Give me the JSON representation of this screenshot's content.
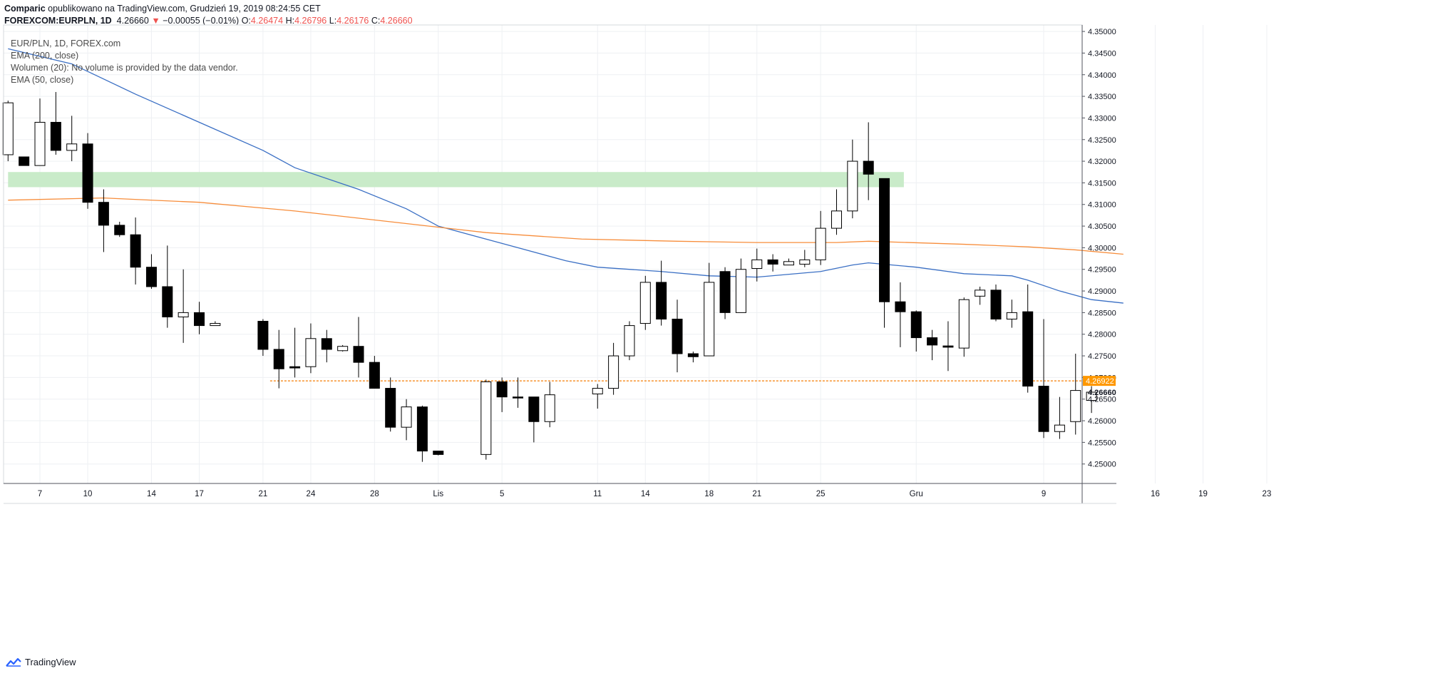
{
  "header": {
    "author": "Comparic",
    "published_text": "opublikowano na TradingView.com, Grudzień 19, 2019 08:24:55 CET",
    "symbol": "FOREXCOM:EURPLN, 1D",
    "last": "4.26660",
    "change_arrow": "▼",
    "change": "−0.00055 (−0.01%)",
    "o_label": "O:",
    "o": "4.26474",
    "h_label": "H:",
    "h": "4.26796",
    "l_label": "L:",
    "l": "4.26176",
    "c_label": "C:",
    "c": "4.26660"
  },
  "legend": {
    "symbol": "EUR/PLN, 1D, FOREX.com",
    "ema200": "EMA (200, close)",
    "volume": "Wolumen (20): No volume is provided by the data vendor.",
    "ema50": "EMA (50, close)"
  },
  "footer": {
    "brand": "TradingView"
  },
  "colors": {
    "ema50": "#3a6fc4",
    "ema200": "#f78d3b",
    "zone": "#c9ebc9",
    "level_line": "#f57c00",
    "level_badge": "#ff9800",
    "candle_up_fill": "#ffffff",
    "candle_down_fill": "#000000",
    "grid": "#eef0f3"
  },
  "chart_data": {
    "type": "candlestick",
    "title": "EUR/PLN, 1D, FOREX.com",
    "ylim": [
      4.2455,
      4.3515
    ],
    "y_ticks": [
      "4.35000",
      "4.34500",
      "4.34000",
      "4.33500",
      "4.33000",
      "4.32500",
      "4.32000",
      "4.31500",
      "4.31000",
      "4.30500",
      "4.30000",
      "4.29500",
      "4.29000",
      "4.28500",
      "4.28000",
      "4.27500",
      "4.27000",
      "4.26500",
      "4.26000",
      "4.25500",
      "4.25000"
    ],
    "x_ticks": [
      {
        "label": "7",
        "day": 0
      },
      {
        "label": "10",
        "day": 3
      },
      {
        "label": "14",
        "day": 7
      },
      {
        "label": "17",
        "day": 10
      },
      {
        "label": "21",
        "day": 14
      },
      {
        "label": "24",
        "day": 17
      },
      {
        "label": "28",
        "day": 21
      },
      {
        "label": "Lis",
        "day": 25
      },
      {
        "label": "5",
        "day": 29
      },
      {
        "label": "11",
        "day": 35
      },
      {
        "label": "14",
        "day": 38
      },
      {
        "label": "18",
        "day": 42
      },
      {
        "label": "21",
        "day": 45
      },
      {
        "label": "25",
        "day": 49
      },
      {
        "label": "Gru",
        "day": 55
      },
      {
        "label": "9",
        "day": 63
      },
      {
        "label": "16",
        "day": 70
      },
      {
        "label": "19",
        "day": 73
      },
      {
        "label": "23",
        "day": 77
      }
    ],
    "candles": [
      {
        "day": -2,
        "o": 4.3215,
        "h": 4.334,
        "l": 4.32,
        "c": 4.3335
      },
      {
        "day": -1,
        "o": 4.321,
        "h": 4.321,
        "l": 4.319,
        "c": 4.319
      },
      {
        "day": 0,
        "o": 4.319,
        "h": 4.3345,
        "l": 4.319,
        "c": 4.329
      },
      {
        "day": 1,
        "o": 4.329,
        "h": 4.336,
        "l": 4.3215,
        "c": 4.3225
      },
      {
        "day": 2,
        "o": 4.3225,
        "h": 4.3305,
        "l": 4.32,
        "c": 4.324
      },
      {
        "day": 3,
        "o": 4.324,
        "h": 4.3265,
        "l": 4.309,
        "c": 4.3105
      },
      {
        "day": 4,
        "o": 4.3105,
        "h": 4.3135,
        "l": 4.299,
        "c": 4.3052
      },
      {
        "day": 5,
        "o": 4.3052,
        "h": 4.306,
        "l": 4.3025,
        "c": 4.303
      },
      {
        "day": 6,
        "o": 4.303,
        "h": 4.307,
        "l": 4.2915,
        "c": 4.2955
      },
      {
        "day": 7,
        "o": 4.2955,
        "h": 4.2985,
        "l": 4.2905,
        "c": 4.291
      },
      {
        "day": 8,
        "o": 4.291,
        "h": 4.3005,
        "l": 4.2815,
        "c": 4.284
      },
      {
        "day": 9,
        "o": 4.284,
        "h": 4.295,
        "l": 4.278,
        "c": 4.285
      },
      {
        "day": 10,
        "o": 4.285,
        "h": 4.2875,
        "l": 4.28,
        "c": 4.282
      },
      {
        "day": 11,
        "o": 4.282,
        "h": 4.283,
        "l": 4.282,
        "c": 4.2825
      },
      {
        "day": 14,
        "o": 4.283,
        "h": 4.2835,
        "l": 4.275,
        "c": 4.2765
      },
      {
        "day": 15,
        "o": 4.2765,
        "h": 4.281,
        "l": 4.2675,
        "c": 4.272
      },
      {
        "day": 16,
        "o": 4.2725,
        "h": 4.2815,
        "l": 4.27,
        "c": 4.2722
      },
      {
        "day": 17,
        "o": 4.2725,
        "h": 4.2825,
        "l": 4.271,
        "c": 4.279
      },
      {
        "day": 18,
        "o": 4.279,
        "h": 4.281,
        "l": 4.2735,
        "c": 4.2765
      },
      {
        "day": 19,
        "o": 4.2762,
        "h": 4.2775,
        "l": 4.276,
        "c": 4.2772
      },
      {
        "day": 20,
        "o": 4.2772,
        "h": 4.284,
        "l": 4.27,
        "c": 4.2735
      },
      {
        "day": 21,
        "o": 4.2735,
        "h": 4.275,
        "l": 4.2675,
        "c": 4.2675
      },
      {
        "day": 22,
        "o": 4.2675,
        "h": 4.27,
        "l": 4.2575,
        "c": 4.2585
      },
      {
        "day": 23,
        "o": 4.2585,
        "h": 4.265,
        "l": 4.2555,
        "c": 4.2632
      },
      {
        "day": 24,
        "o": 4.2632,
        "h": 4.2635,
        "l": 4.2505,
        "c": 4.253
      },
      {
        "day": 25,
        "o": 4.253,
        "h": 4.253,
        "l": 4.252,
        "c": 4.2522
      },
      {
        "day": 28,
        "o": 4.2522,
        "h": 4.2695,
        "l": 4.251,
        "c": 4.269
      },
      {
        "day": 29,
        "o": 4.269,
        "h": 4.27,
        "l": 4.262,
        "c": 4.2655
      },
      {
        "day": 30,
        "o": 4.2655,
        "h": 4.27,
        "l": 4.263,
        "c": 4.2654
      },
      {
        "day": 31,
        "o": 4.2655,
        "h": 4.2655,
        "l": 4.255,
        "c": 4.2598
      },
      {
        "day": 32,
        "o": 4.2598,
        "h": 4.269,
        "l": 4.2585,
        "c": 4.266
      },
      {
        "day": 35,
        "o": 4.2662,
        "h": 4.2685,
        "l": 4.2628,
        "c": 4.2675
      },
      {
        "day": 36,
        "o": 4.2675,
        "h": 4.278,
        "l": 4.266,
        "c": 4.275
      },
      {
        "day": 37,
        "o": 4.275,
        "h": 4.283,
        "l": 4.274,
        "c": 4.282
      },
      {
        "day": 38,
        "o": 4.2825,
        "h": 4.2935,
        "l": 4.281,
        "c": 4.292
      },
      {
        "day": 39,
        "o": 4.292,
        "h": 4.297,
        "l": 4.282,
        "c": 4.2835
      },
      {
        "day": 40,
        "o": 4.2835,
        "h": 4.288,
        "l": 4.2712,
        "c": 4.2755
      },
      {
        "day": 41,
        "o": 4.2755,
        "h": 4.276,
        "l": 4.2735,
        "c": 4.2748
      },
      {
        "day": 42,
        "o": 4.275,
        "h": 4.2965,
        "l": 4.275,
        "c": 4.292
      },
      {
        "day": 43,
        "o": 4.2945,
        "h": 4.2955,
        "l": 4.2835,
        "c": 4.285
      },
      {
        "day": 44,
        "o": 4.285,
        "h": 4.2975,
        "l": 4.285,
        "c": 4.295
      },
      {
        "day": 45,
        "o": 4.2952,
        "h": 4.2998,
        "l": 4.2922,
        "c": 4.2972
      },
      {
        "day": 46,
        "o": 4.2972,
        "h": 4.2985,
        "l": 4.2945,
        "c": 4.2962
      },
      {
        "day": 47,
        "o": 4.296,
        "h": 4.2975,
        "l": 4.296,
        "c": 4.2968
      },
      {
        "day": 48,
        "o": 4.2962,
        "h": 4.2995,
        "l": 4.2955,
        "c": 4.2972
      },
      {
        "day": 49,
        "o": 4.2972,
        "h": 4.3085,
        "l": 4.296,
        "c": 4.3045
      },
      {
        "day": 50,
        "o": 4.3045,
        "h": 4.3135,
        "l": 4.303,
        "c": 4.3085
      },
      {
        "day": 51,
        "o": 4.3085,
        "h": 4.325,
        "l": 4.3068,
        "c": 4.32
      },
      {
        "day": 52,
        "o": 4.32,
        "h": 4.329,
        "l": 4.311,
        "c": 4.317
      },
      {
        "day": 53,
        "o": 4.316,
        "h": 4.316,
        "l": 4.2815,
        "c": 4.2875
      },
      {
        "day": 54,
        "o": 4.2875,
        "h": 4.292,
        "l": 4.277,
        "c": 4.2852
      },
      {
        "day": 55,
        "o": 4.2852,
        "h": 4.2855,
        "l": 4.276,
        "c": 4.2792
      },
      {
        "day": 56,
        "o": 4.2792,
        "h": 4.281,
        "l": 4.274,
        "c": 4.2775
      },
      {
        "day": 57,
        "o": 4.2773,
        "h": 4.283,
        "l": 4.2715,
        "c": 4.277
      },
      {
        "day": 58,
        "o": 4.2768,
        "h": 4.2885,
        "l": 4.2748,
        "c": 4.288
      },
      {
        "day": 59,
        "o": 4.2888,
        "h": 4.291,
        "l": 4.2868,
        "c": 4.2902
      },
      {
        "day": 60,
        "o": 4.2902,
        "h": 4.2915,
        "l": 4.283,
        "c": 4.2835
      },
      {
        "day": 61,
        "o": 4.2835,
        "h": 4.288,
        "l": 4.2815,
        "c": 4.285
      },
      {
        "day": 62,
        "o": 4.2852,
        "h": 4.2915,
        "l": 4.2665,
        "c": 4.268
      },
      {
        "day": 63,
        "o": 4.268,
        "h": 4.2835,
        "l": 4.256,
        "c": 4.2575
      },
      {
        "day": 64,
        "o": 4.2575,
        "h": 4.2655,
        "l": 4.2558,
        "c": 4.259
      },
      {
        "day": 65,
        "o": 4.2598,
        "h": 4.2755,
        "l": 4.2568,
        "c": 4.267
      },
      {
        "day": 66,
        "o": 4.2647,
        "h": 4.268,
        "l": 4.2618,
        "c": 4.2666
      }
    ],
    "series": [
      {
        "name": "EMA (50, close)",
        "color": "#3a6fc4",
        "points": [
          [
            -2,
            4.346
          ],
          [
            2,
            4.3425
          ],
          [
            6,
            4.3355
          ],
          [
            10,
            4.329
          ],
          [
            14,
            4.3225
          ],
          [
            16,
            4.3185
          ],
          [
            20,
            4.3135
          ],
          [
            23,
            4.309
          ],
          [
            25,
            4.305
          ],
          [
            27,
            4.303
          ],
          [
            30,
            4.3
          ],
          [
            33,
            4.297
          ],
          [
            35,
            4.2955
          ],
          [
            39,
            4.2945
          ],
          [
            42,
            4.2935
          ],
          [
            45,
            4.2932
          ],
          [
            49,
            4.2945
          ],
          [
            51,
            4.296
          ],
          [
            52,
            4.2965
          ],
          [
            55,
            4.2955
          ],
          [
            58,
            4.294
          ],
          [
            61,
            4.2935
          ],
          [
            62,
            4.2925
          ],
          [
            64,
            4.29
          ],
          [
            66,
            4.288
          ],
          [
            68,
            4.2872
          ]
        ]
      },
      {
        "name": "EMA (200, close)",
        "color": "#f78d3b",
        "points": [
          [
            -2,
            4.311
          ],
          [
            4,
            4.3115
          ],
          [
            10,
            4.3105
          ],
          [
            16,
            4.3085
          ],
          [
            22,
            4.306
          ],
          [
            28,
            4.3035
          ],
          [
            34,
            4.302
          ],
          [
            40,
            4.3015
          ],
          [
            45,
            4.3012
          ],
          [
            50,
            4.3012
          ],
          [
            52,
            4.3015
          ],
          [
            58,
            4.3008
          ],
          [
            62,
            4.3002
          ],
          [
            65,
            4.2995
          ],
          [
            68,
            4.2985
          ]
        ]
      }
    ],
    "zone": {
      "from_day": -2,
      "to_day": 54,
      "low": 4.314,
      "high": 4.3175,
      "color": "#c9ebc9"
    },
    "level": {
      "value": 4.26922,
      "from_day": 14,
      "to_day": 80,
      "label": "4.26922"
    },
    "current_price_label": "4.26660"
  }
}
